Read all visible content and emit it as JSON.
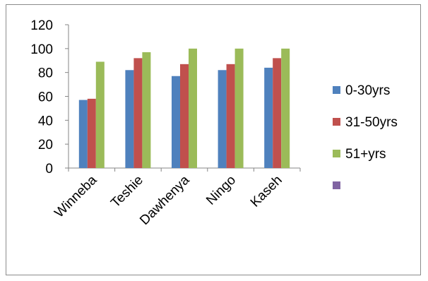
{
  "chart_data": {
    "type": "bar",
    "categories": [
      "Winneba",
      "Teshie",
      "Dawhenya",
      "Ningo",
      "Kaseh"
    ],
    "series": [
      {
        "name": "0-30yrs",
        "values": [
          57,
          82,
          77,
          82,
          84
        ],
        "color": "#4f81bd"
      },
      {
        "name": "31-50yrs",
        "values": [
          58,
          92,
          87,
          87,
          92
        ],
        "color": "#c0504d"
      },
      {
        "name": "51+yrs",
        "values": [
          89,
          97,
          100,
          100,
          100
        ],
        "color": "#9bbb59"
      }
    ],
    "extra_legend_entry": {
      "name": "",
      "color": "#8064a2"
    },
    "ylim": [
      0,
      120
    ],
    "yticks": [
      0,
      20,
      40,
      60,
      80,
      100,
      120
    ],
    "title": "",
    "xlabel": "",
    "ylabel": "",
    "grid": false,
    "legend_position": "right"
  }
}
